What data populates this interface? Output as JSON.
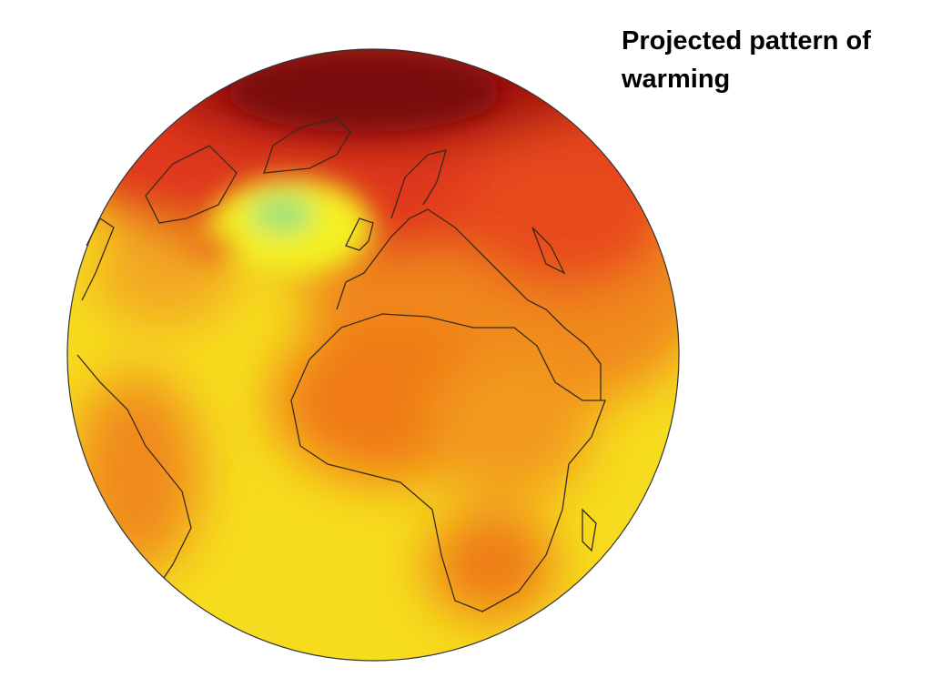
{
  "title": "Projected pattern of warming"
}
